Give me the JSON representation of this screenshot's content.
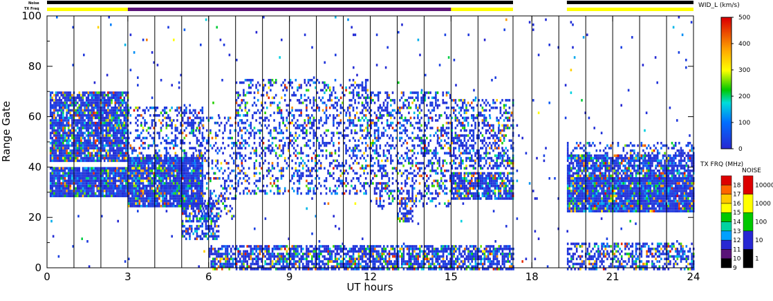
{
  "chart_data": {
    "type": "heatmap",
    "xlabel": "UT hours",
    "ylabel": "Range Gate",
    "xlim": [
      0,
      24
    ],
    "ylim": [
      0,
      100
    ],
    "x_ticks": [
      0,
      3,
      6,
      9,
      12,
      15,
      18,
      21,
      24
    ],
    "y_ticks": [
      0,
      20,
      40,
      60,
      80,
      100
    ],
    "top_bar_labels": {
      "noise": "Noise",
      "freq": "TX Freq"
    },
    "noise_bars": [
      [
        0,
        17.3
      ],
      [
        19.3,
        24
      ]
    ],
    "freq_segments": [
      {
        "from": 0,
        "to": 3,
        "color": "#ffff00"
      },
      {
        "from": 3,
        "to": 15,
        "color": "#5a1478"
      },
      {
        "from": 15,
        "to": 17.3,
        "color": "#ffff00"
      },
      {
        "from": 19.3,
        "to": 24,
        "color": "#ffff00"
      }
    ],
    "scan_lines": [
      1,
      2,
      3,
      4,
      5,
      6,
      7,
      8,
      9,
      10,
      11,
      12,
      13,
      14,
      15,
      16,
      17.3,
      18,
      19,
      20,
      21,
      22,
      23
    ],
    "scatter_regions": [
      {
        "x": [
          0.1,
          3.0
        ],
        "y": [
          29,
          40
        ],
        "density": 0.95
      },
      {
        "x": [
          0.1,
          3.0
        ],
        "y": [
          43,
          70
        ],
        "density": 0.9
      },
      {
        "x": [
          3.0,
          5.8
        ],
        "y": [
          25,
          44
        ],
        "density": 0.95
      },
      {
        "x": [
          3.0,
          5.8
        ],
        "y": [
          44,
          64
        ],
        "density": 0.35
      },
      {
        "x": [
          5.0,
          6.4
        ],
        "y": [
          12,
          28
        ],
        "density": 0.6
      },
      {
        "x": [
          5.5,
          7.0
        ],
        "y": [
          20,
          60
        ],
        "density": 0.25
      },
      {
        "x": [
          7.0,
          12.0
        ],
        "y": [
          30,
          75
        ],
        "density": 0.3
      },
      {
        "x": [
          12.0,
          15.0
        ],
        "y": [
          25,
          70
        ],
        "density": 0.35
      },
      {
        "x": [
          13.0,
          13.6
        ],
        "y": [
          19,
          28
        ],
        "density": 0.5
      },
      {
        "x": [
          15.0,
          17.3
        ],
        "y": [
          28,
          38
        ],
        "density": 0.8
      },
      {
        "x": [
          15.0,
          17.3
        ],
        "y": [
          40,
          67
        ],
        "density": 0.45
      },
      {
        "x": [
          19.3,
          24.0
        ],
        "y": [
          23,
          36
        ],
        "density": 0.95
      },
      {
        "x": [
          19.3,
          24.0
        ],
        "y": [
          36,
          45
        ],
        "density": 0.8
      },
      {
        "x": [
          19.3,
          24.0
        ],
        "y": [
          45,
          50
        ],
        "density": 0.35
      },
      {
        "x": [
          6.0,
          17.3
        ],
        "y": [
          0,
          9
        ],
        "density": 0.7
      },
      {
        "x": [
          19.3,
          24.0
        ],
        "y": [
          0,
          10
        ],
        "density": 0.55
      },
      {
        "x": [
          0.0,
          24.0
        ],
        "y": [
          0,
          100
        ],
        "density": 0.01
      }
    ],
    "velocity_colorbar": {
      "title": "WID_L (km/s)",
      "range": [
        0,
        500
      ],
      "ticks": [
        0,
        100,
        200,
        300,
        400,
        500
      ]
    },
    "freq_colorbar": {
      "title": "TX FRQ (MHz)",
      "levels": [
        9,
        10,
        11,
        12,
        13,
        14,
        15,
        16,
        17,
        18
      ],
      "colors": [
        "#000000",
        "#5a1478",
        "#2828d2",
        "#00a0ff",
        "#00d2a0",
        "#00c800",
        "#ffff00",
        "#ffc800",
        "#ff6400",
        "#dc0000"
      ]
    },
    "noise_colorbar": {
      "title": "NOISE",
      "ticks": [
        "1",
        "10",
        "100",
        "1000",
        "10000"
      ],
      "colors": [
        "#000000",
        "#2828d2",
        "#00c800",
        "#ffff00",
        "#dc0000"
      ]
    }
  }
}
